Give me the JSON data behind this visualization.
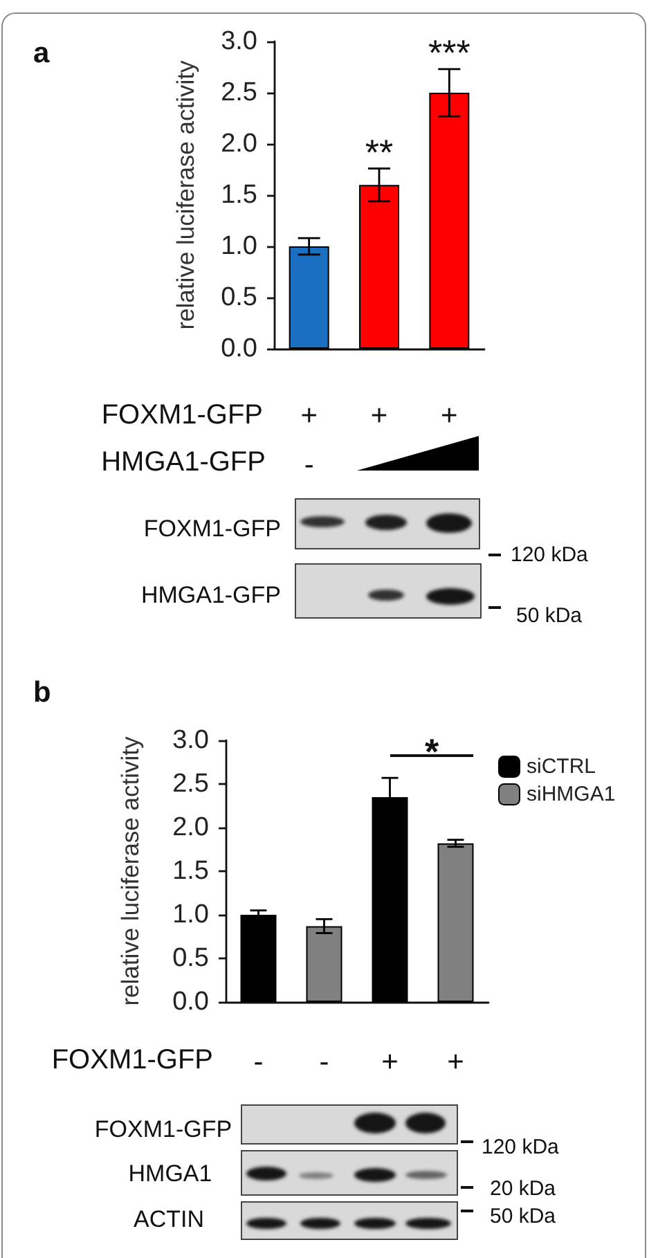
{
  "chart_data": [
    {
      "type": "bar",
      "title": "a",
      "ylabel": "relative luciferase activity",
      "xlabel": "FOXM1-GFP",
      "categories": [
        "+",
        "+",
        "+"
      ],
      "values": [
        1.0,
        1.6,
        2.5
      ],
      "colors": [
        "#1a6fc0",
        "#ff0000",
        "#ff0000"
      ],
      "errors": [
        0.08,
        0.16,
        0.23
      ],
      "value_labels": [
        null,
        "**",
        "***"
      ],
      "ylim": [
        0,
        3
      ],
      "yticks": [
        {
          "value": 0,
          "label": "0.0"
        },
        0.5,
        {
          "value": 1,
          "label": "1.0"
        },
        1.5,
        {
          "value": 2,
          "label": "2.0"
        },
        2.5,
        {
          "value": 3,
          "label": "3.0"
        }
      ],
      "annotations": [
        "HMGA1-GFP",
        "-",
        "FOXM1-GFP",
        "HMGA1-GFP",
        "120 kDa",
        "50 kDa"
      ]
    },
    {
      "type": "bar",
      "title": "b",
      "ylabel": "relative luciferase activity",
      "xlabel": "FOXM1-GFP",
      "categories": [
        "-",
        "-",
        "+",
        "+"
      ],
      "series": [
        {
          "name": "siCTRL",
          "color": "#000000",
          "values": [
            1.0,
            null,
            2.35,
            null
          ],
          "errors": [
            0.05,
            null,
            0.22,
            null
          ]
        },
        {
          "name": "siHMGA1",
          "color": "#808080",
          "values": [
            null,
            0.87,
            null,
            1.82
          ],
          "errors": [
            null,
            0.08,
            null,
            0.04
          ]
        }
      ],
      "legend": "top right",
      "ylim": [
        0,
        3
      ],
      "yticks": [
        {
          "value": 0,
          "label": "0.0"
        },
        0.5,
        {
          "value": 1,
          "label": "1.0"
        },
        1.5,
        {
          "value": 2,
          "label": "2.0"
        },
        2.5,
        {
          "value": 3,
          "label": "3.0"
        }
      ],
      "annotations": [
        "*",
        "FOXM1-GFP",
        "HMGA1",
        "ACTIN",
        "120 kDa",
        "20 kDa",
        "50 kDa"
      ]
    }
  ]
}
